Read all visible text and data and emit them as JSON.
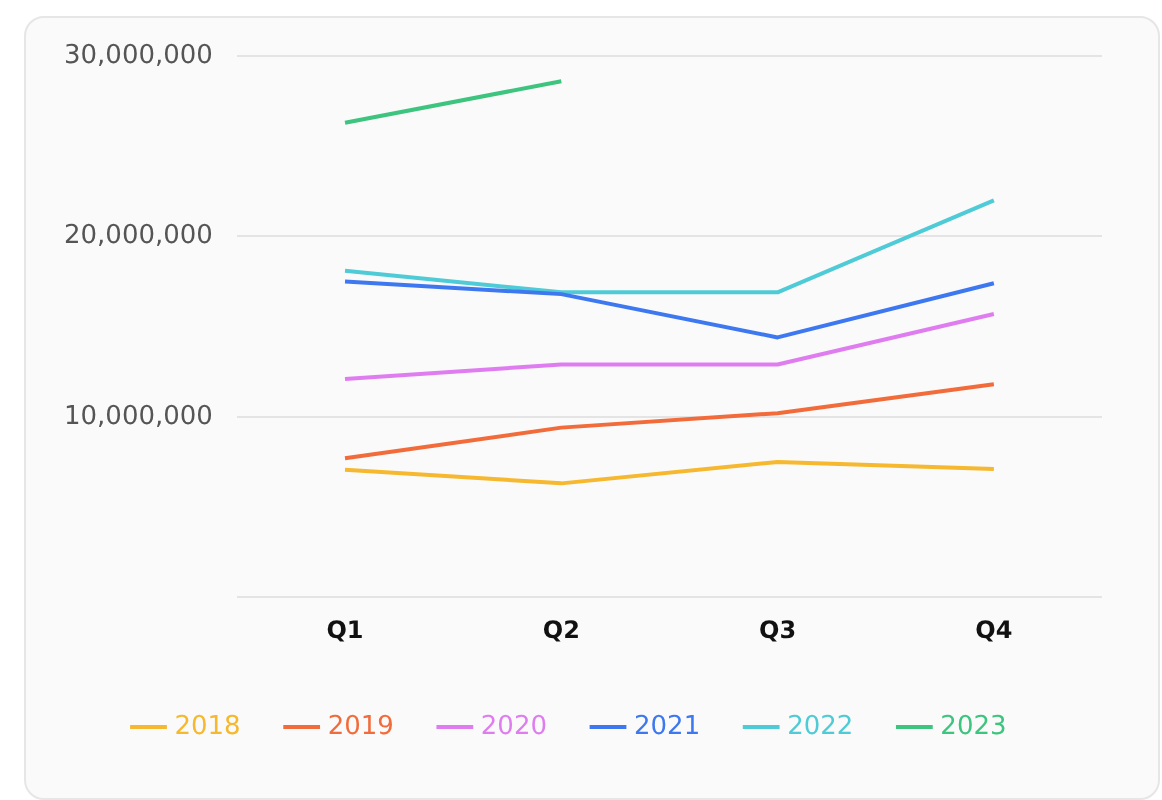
{
  "chart_data": {
    "type": "line",
    "categories": [
      "Q1",
      "Q2",
      "Q3",
      "Q4"
    ],
    "series": [
      {
        "name": "2018",
        "color": "#f5b82e",
        "values": [
          7070000,
          6310000,
          7500000,
          7100000
        ]
      },
      {
        "name": "2019",
        "color": "#f26b3a",
        "values": [
          7700000,
          9400000,
          10200000,
          11800000
        ]
      },
      {
        "name": "2020",
        "color": "#df7df0",
        "values": [
          12100000,
          12900000,
          12900000,
          15700000
        ]
      },
      {
        "name": "2021",
        "color": "#3d78f0",
        "values": [
          17500000,
          16800000,
          14400000,
          17400000
        ]
      },
      {
        "name": "2022",
        "color": "#4ecbd6",
        "values": [
          18100000,
          16900000,
          16900000,
          22000000
        ]
      },
      {
        "name": "2023",
        "color": "#3dc47e",
        "values": [
          26300000,
          28600000,
          null,
          null
        ]
      }
    ],
    "ylim": [
      0,
      30000000
    ],
    "yticks": [
      {
        "value": 0,
        "label": null
      },
      {
        "value": 10000000,
        "label": "10,000,000"
      },
      {
        "value": 20000000,
        "label": "20,000,000"
      },
      {
        "value": 30000000,
        "label": "30,000,000"
      }
    ],
    "grid": "y",
    "legend": "bottom",
    "marker": "none",
    "line_style": "solid"
  }
}
